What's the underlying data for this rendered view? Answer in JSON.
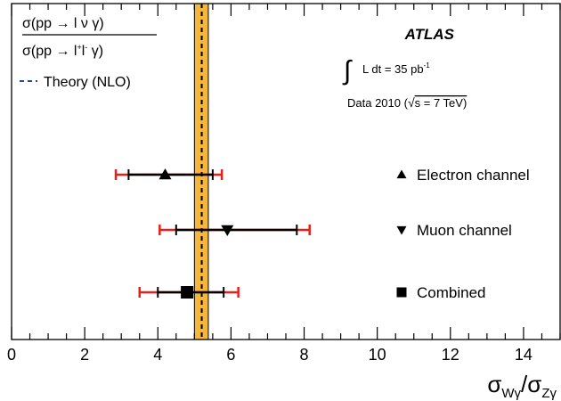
{
  "chart_data": {
    "type": "scatter",
    "experiment": "ATLAS",
    "luminosity_text": "L dt = 35 pb",
    "luminosity_exponent": "-1",
    "data_text": "Data 2010 (",
    "sqrt_s_text": "s = 7 TeV)",
    "ratio_numerator": "σ(pp → l ν γ)",
    "ratio_denominator_pre": "σ(pp → l",
    "ratio_denominator_sup_plus": "+",
    "ratio_denominator_mid": "l",
    "ratio_denominator_sup_minus": "-",
    "ratio_denominator_post": " γ)",
    "theory_label": "Theory (NLO)",
    "theory": {
      "value": 5.2,
      "band": [
        5.0,
        5.38
      ]
    },
    "xlabel_parts": [
      "σ",
      "Wγ",
      "/σ",
      "Zγ"
    ],
    "xlim": [
      0,
      15
    ],
    "x_ticks": [
      0,
      2,
      4,
      6,
      8,
      10,
      12,
      14
    ],
    "x_tick_labels": [
      "0",
      "2",
      "4",
      "6",
      "8",
      "10",
      "12",
      "14"
    ],
    "series": [
      {
        "name": "Electron channel",
        "marker": "triangle-up",
        "value": 4.2,
        "stat_err": [
          3.2,
          5.5
        ],
        "total_err": [
          2.85,
          5.75
        ]
      },
      {
        "name": "Muon channel",
        "marker": "triangle-down",
        "value": 5.9,
        "stat_err": [
          4.5,
          7.8
        ],
        "total_err": [
          4.05,
          8.15
        ]
      },
      {
        "name": "Combined",
        "marker": "square",
        "value": 4.8,
        "stat_err": [
          4.0,
          5.8
        ],
        "total_err": [
          3.5,
          6.2
        ]
      }
    ],
    "colors": {
      "band": "#f4b63c",
      "total_err": "#e8201c",
      "stat_err": "#000000",
      "theory_line": "#000000",
      "legend_dash": "#1f4e8c"
    },
    "grid": false
  }
}
